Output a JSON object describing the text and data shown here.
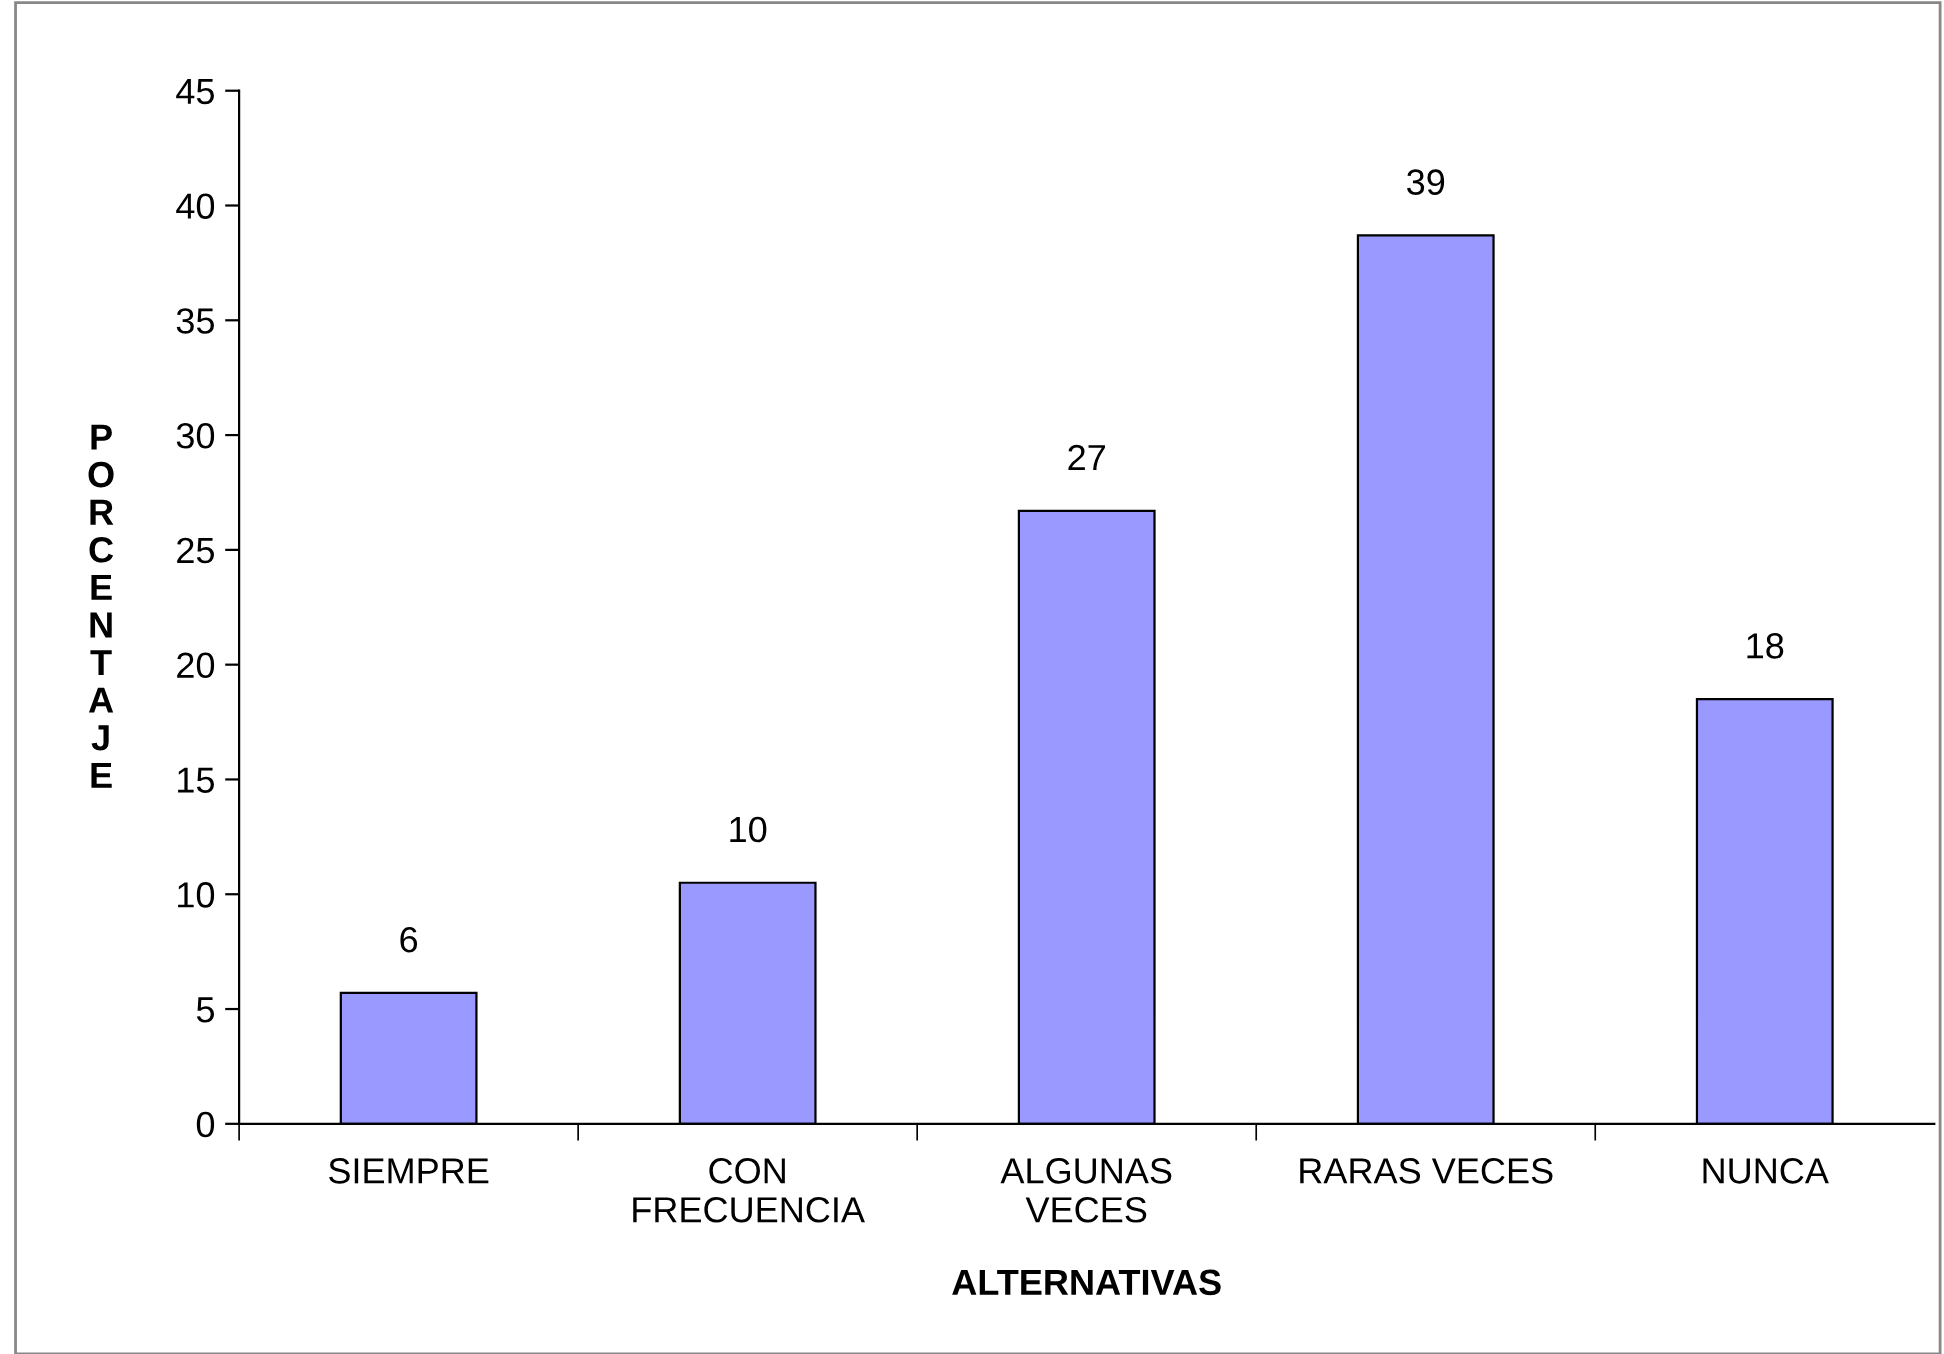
{
  "chart_data": {
    "type": "bar",
    "xlabel": "ALTERNATIVAS",
    "ylabel": "PORCENTAJE",
    "categories": [
      "SIEMPRE",
      "CON\nFRECUENCIA",
      "ALGUNAS\nVECES",
      "RARAS VECES",
      "NUNCA"
    ],
    "values": [
      5.7,
      10.5,
      26.7,
      38.7,
      18.5
    ],
    "value_labels": [
      "6",
      "10",
      "27",
      "39",
      "18"
    ],
    "color": "#9999ff",
    "ylim": [
      0,
      45
    ],
    "yticks": [
      0,
      5,
      10,
      15,
      20,
      25,
      30,
      35,
      40,
      45
    ],
    "grid": false,
    "legend": false
  }
}
